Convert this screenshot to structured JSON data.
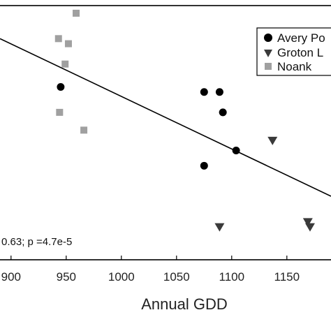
{
  "chart_data": {
    "type": "scatter",
    "xlabel": "Annual GDD",
    "ylabel": "",
    "title": "",
    "xlim": [
      890,
      1190
    ],
    "ylim": [
      0,
      1
    ],
    "x_ticks": [
      "900",
      "950",
      "1000",
      "1050",
      "1100",
      "1150"
    ],
    "annotation": "0.63; p =4.7e-5",
    "legend_position": "top-right",
    "grid": false,
    "trendline": {
      "x": [
        890,
        1190
      ],
      "y": [
        0.87,
        0.25
      ]
    },
    "series": [
      {
        "name": "Avery Po",
        "marker": "circle",
        "color": "#000000",
        "points": [
          {
            "x": 945,
            "y": 0.68
          },
          {
            "x": 1075,
            "y": 0.66
          },
          {
            "x": 1089,
            "y": 0.66
          },
          {
            "x": 1092,
            "y": 0.58
          },
          {
            "x": 1104,
            "y": 0.43
          },
          {
            "x": 1075,
            "y": 0.37
          }
        ]
      },
      {
        "name": "Groton L",
        "marker": "triangle-down",
        "color": "#3a3a3a",
        "points": [
          {
            "x": 1137,
            "y": 0.47
          },
          {
            "x": 1089,
            "y": 0.13
          },
          {
            "x": 1169,
            "y": 0.15
          },
          {
            "x": 1171,
            "y": 0.13
          }
        ]
      },
      {
        "name": "Noank",
        "marker": "square",
        "color": "#a0a0a0",
        "points": [
          {
            "x": 959,
            "y": 0.97
          },
          {
            "x": 943,
            "y": 0.87
          },
          {
            "x": 952,
            "y": 0.85
          },
          {
            "x": 949,
            "y": 0.77
          },
          {
            "x": 944,
            "y": 0.58
          },
          {
            "x": 966,
            "y": 0.51
          }
        ]
      }
    ]
  }
}
